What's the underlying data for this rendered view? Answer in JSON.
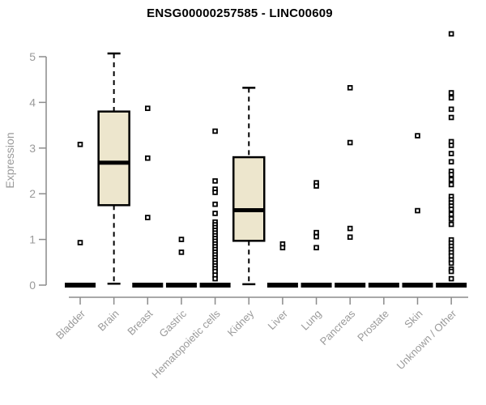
{
  "chart_data": {
    "type": "box",
    "title": "ENSG00000257585 - LINC00609",
    "ylabel": "Expression",
    "xlabel": "",
    "yticks": [
      0,
      1,
      2,
      3,
      4,
      5
    ],
    "ylim": [
      0,
      5.6
    ],
    "grid": false,
    "legend": false,
    "categories": [
      "Bladder",
      "Brain",
      "Breast",
      "Gastric",
      "Hematopoietic cells",
      "Kidney",
      "Liver",
      "Lung",
      "Pancreas",
      "Prostate",
      "Skin",
      "Unknown / Other"
    ],
    "boxes": [
      {
        "category": "Bladder",
        "q1": 0,
        "median": 0,
        "q3": 0,
        "whisker_low": 0,
        "whisker_high": 0,
        "outliers": [
          3.08,
          0.93
        ]
      },
      {
        "category": "Brain",
        "q1": 1.75,
        "median": 2.68,
        "q3": 3.8,
        "whisker_low": 0.03,
        "whisker_high": 5.07,
        "outliers": []
      },
      {
        "category": "Breast",
        "q1": 0,
        "median": 0,
        "q3": 0,
        "whisker_low": 0,
        "whisker_high": 0,
        "outliers": [
          3.87,
          2.78,
          1.48
        ]
      },
      {
        "category": "Gastric",
        "q1": 0,
        "median": 0,
        "q3": 0,
        "whisker_low": 0,
        "whisker_high": 0,
        "outliers": [
          1.0,
          0.72
        ]
      },
      {
        "category": "Hematopoietic cells",
        "q1": 0,
        "median": 0,
        "q3": 0,
        "whisker_low": 0,
        "whisker_high": 0,
        "outliers": [
          3.37,
          2.28,
          2.1,
          2.03,
          1.77,
          1.57,
          1.38,
          1.32,
          1.26,
          1.2,
          1.14,
          1.08,
          1.02,
          0.96,
          0.9,
          0.84,
          0.78,
          0.72,
          0.66,
          0.6,
          0.54,
          0.48,
          0.42,
          0.36,
          0.3,
          0.22,
          0.14
        ]
      },
      {
        "category": "Kidney",
        "q1": 0.97,
        "median": 1.64,
        "q3": 2.8,
        "whisker_low": 0.02,
        "whisker_high": 4.32,
        "outliers": []
      },
      {
        "category": "Liver",
        "q1": 0,
        "median": 0,
        "q3": 0,
        "whisker_low": 0,
        "whisker_high": 0,
        "outliers": [
          0.9,
          0.82
        ]
      },
      {
        "category": "Lung",
        "q1": 0,
        "median": 0,
        "q3": 0,
        "whisker_low": 0,
        "whisker_high": 0,
        "outliers": [
          2.24,
          2.17,
          1.15,
          1.06,
          0.82
        ]
      },
      {
        "category": "Pancreas",
        "q1": 0,
        "median": 0,
        "q3": 0,
        "whisker_low": 0,
        "whisker_high": 0,
        "outliers": [
          4.32,
          3.12,
          1.24,
          1.05
        ]
      },
      {
        "category": "Prostate",
        "q1": 0,
        "median": 0,
        "q3": 0,
        "whisker_low": 0,
        "whisker_high": 0,
        "outliers": []
      },
      {
        "category": "Skin",
        "q1": 0,
        "median": 0,
        "q3": 0,
        "whisker_low": 0,
        "whisker_high": 0,
        "outliers": [
          3.27,
          1.63
        ]
      },
      {
        "category": "Unknown / Other",
        "q1": 0,
        "median": 0,
        "q3": 0,
        "whisker_low": 0,
        "whisker_high": 0,
        "outliers": [
          5.5,
          4.21,
          4.1,
          3.85,
          3.67,
          3.14,
          3.06,
          2.88,
          2.7,
          2.49,
          2.42,
          2.31,
          2.2,
          1.94,
          1.87,
          1.8,
          1.73,
          1.66,
          1.55,
          1.45,
          1.33,
          0.99,
          0.92,
          0.85,
          0.78,
          0.71,
          0.64,
          0.55,
          0.48,
          0.35,
          0.3,
          0.14
        ]
      }
    ],
    "colors": {
      "box_fill": "#EDE6CD",
      "box_stroke": "#000000",
      "median": "#000000",
      "outlier_stroke": "#000000",
      "outlier_fill": "#FFFFFF",
      "axis": "#8C8C8C",
      "tick_label": "#9A9A9A",
      "title": "#000000"
    }
  }
}
